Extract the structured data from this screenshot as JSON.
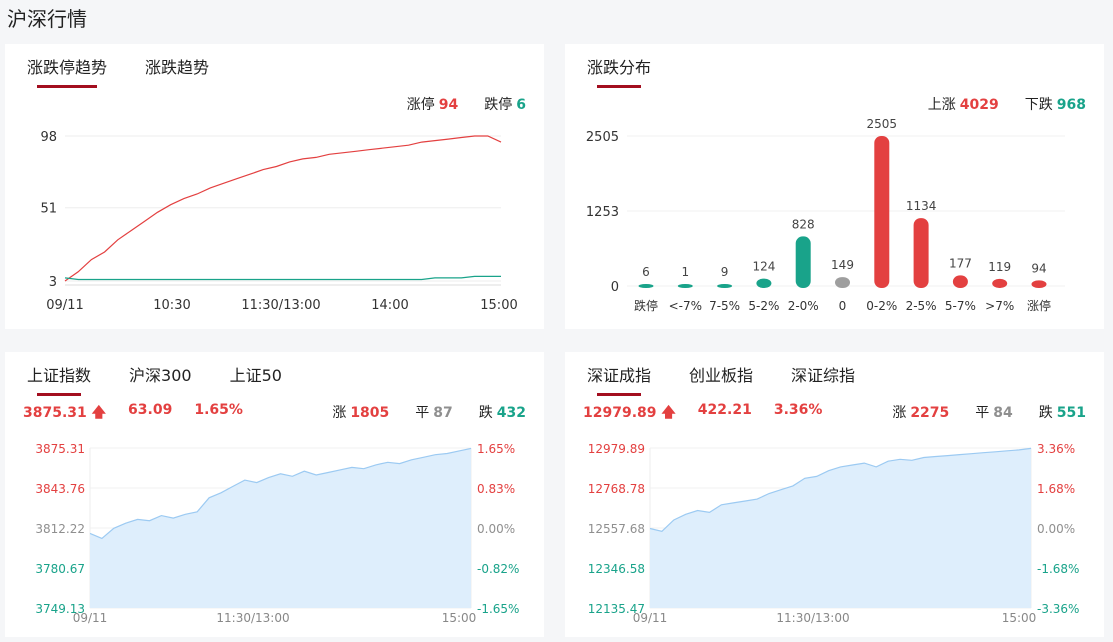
{
  "page_title": "沪深行情",
  "limit_panel": {
    "tabs": [
      {
        "label": "涨跌停趋势",
        "active": true
      },
      {
        "label": "涨跌趋势",
        "active": false
      }
    ],
    "limit_up_label": "涨停",
    "limit_up_value": "94",
    "limit_down_label": "跌停",
    "limit_down_value": "6",
    "chart_data": {
      "type": "line",
      "y_ticks": [
        "98",
        "51",
        "3"
      ],
      "x_ticks": [
        "09/11",
        "10:30",
        "11:30/13:00",
        "14:00",
        "15:00"
      ],
      "ylim": [
        3,
        98
      ],
      "series": [
        {
          "name": "涨停",
          "color": "#e34040",
          "values": [
            3,
            9,
            17,
            22,
            30,
            36,
            42,
            48,
            53,
            57,
            60,
            64,
            67,
            70,
            73,
            76,
            78,
            81,
            83,
            84,
            86,
            87,
            88,
            89,
            90,
            91,
            92,
            94,
            95,
            96,
            97,
            98,
            98,
            94
          ]
        },
        {
          "name": "跌停",
          "color": "#19a38a",
          "values": [
            5,
            4,
            4,
            4,
            4,
            4,
            4,
            4,
            4,
            4,
            4,
            4,
            4,
            4,
            4,
            4,
            4,
            4,
            4,
            4,
            4,
            4,
            4,
            4,
            4,
            4,
            4,
            4,
            5,
            5,
            5,
            6,
            6,
            6
          ]
        }
      ]
    }
  },
  "distribution_panel": {
    "tabs": [
      {
        "label": "涨跌分布",
        "active": true
      }
    ],
    "up_label": "上涨",
    "up_value": "4029",
    "down_label": "下跌",
    "down_value": "968",
    "chart_data": {
      "type": "bar",
      "y_ticks": [
        "2505",
        "1253",
        "0"
      ],
      "ylim": [
        0,
        2505
      ],
      "categories": [
        "跌停",
        "<-7%",
        "7-5%",
        "5-2%",
        "2-0%",
        "0",
        "0-2%",
        "2-5%",
        "5-7%",
        ">7%",
        "涨停"
      ],
      "values": [
        6,
        1,
        9,
        124,
        828,
        149,
        2505,
        1134,
        177,
        119,
        94
      ],
      "value_labels": [
        "6",
        "1",
        "9",
        "124",
        "828",
        "149",
        "2505",
        "1134",
        "177",
        "119",
        "94"
      ],
      "colors": [
        "#19a38a",
        "#19a38a",
        "#19a38a",
        "#19a38a",
        "#19a38a",
        "#9e9e9e",
        "#e34040",
        "#e34040",
        "#e34040",
        "#e34040",
        "#e34040"
      ]
    }
  },
  "sh_panel": {
    "tabs": [
      {
        "label": "上证指数",
        "active": true
      },
      {
        "label": "沪深300",
        "active": false
      },
      {
        "label": "上证50",
        "active": false
      }
    ],
    "price": "3875.31",
    "change": "63.09",
    "pct": "1.65%",
    "up_label": "涨",
    "up_value": "1805",
    "flat_label": "平",
    "flat_value": "87",
    "down_label": "跌",
    "down_value": "432",
    "chart_data": {
      "type": "area",
      "y_left_ticks": [
        "3875.31",
        "3843.76",
        "3812.22",
        "3780.67",
        "3749.13"
      ],
      "y_right_ticks": [
        "1.65%",
        "0.83%",
        "0.00%",
        "-0.82%",
        "-1.65%"
      ],
      "x_ticks": [
        "09/11",
        "11:30/13:00",
        "15:00"
      ],
      "ylim": [
        3749.13,
        3875.31
      ],
      "values": [
        3808,
        3804,
        3812,
        3816,
        3819,
        3818,
        3822,
        3820,
        3823,
        3825,
        3836,
        3840,
        3845,
        3850,
        3848,
        3852,
        3855,
        3853,
        3857,
        3854,
        3856,
        3858,
        3860,
        3859,
        3862,
        3864,
        3863,
        3866,
        3868,
        3870,
        3871,
        3873,
        3875
      ]
    }
  },
  "sz_panel": {
    "tabs": [
      {
        "label": "深证成指",
        "active": true
      },
      {
        "label": "创业板指",
        "active": false
      },
      {
        "label": "深证综指",
        "active": false
      }
    ],
    "price": "12979.89",
    "change": "422.21",
    "pct": "3.36%",
    "up_label": "涨",
    "up_value": "2275",
    "flat_label": "平",
    "flat_value": "84",
    "down_label": "跌",
    "down_value": "551",
    "chart_data": {
      "type": "area",
      "y_left_ticks": [
        "12979.89",
        "12768.78",
        "12557.68",
        "12346.58",
        "12135.47"
      ],
      "y_right_ticks": [
        "3.36%",
        "1.68%",
        "0.00%",
        "-1.68%",
        "-3.36%"
      ],
      "x_ticks": [
        "09/11",
        "11:30/13:00",
        "15:00"
      ],
      "ylim": [
        12135.47,
        12979.89
      ],
      "values": [
        12555,
        12540,
        12600,
        12630,
        12650,
        12640,
        12680,
        12690,
        12700,
        12710,
        12740,
        12760,
        12780,
        12820,
        12830,
        12860,
        12880,
        12890,
        12900,
        12880,
        12910,
        12920,
        12915,
        12930,
        12935,
        12940,
        12945,
        12950,
        12955,
        12960,
        12965,
        12970,
        12978
      ]
    }
  }
}
